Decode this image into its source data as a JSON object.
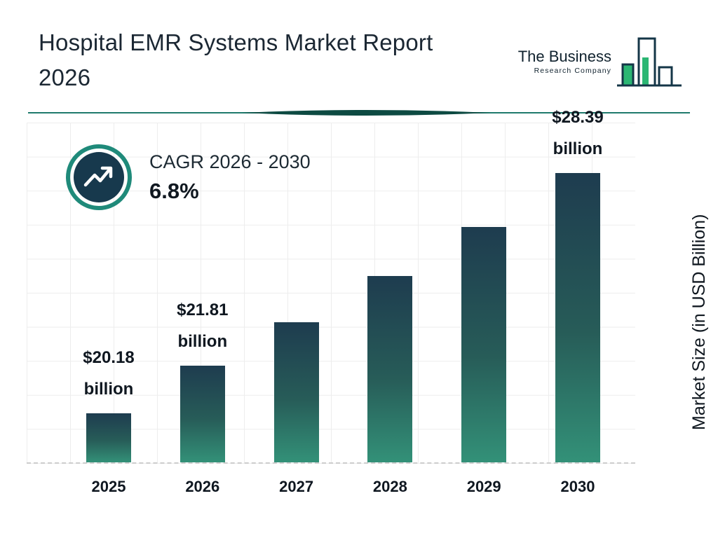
{
  "header": {
    "title_line1": "Hospital EMR Systems Market Report",
    "title_line2": "2026"
  },
  "logo": {
    "line1": "The Business",
    "line2": "Research Company"
  },
  "cagr": {
    "label": "CAGR 2026 - 2030",
    "value": "6.8%"
  },
  "chart_data": {
    "type": "bar",
    "title": "Hospital EMR Systems Market Report 2026",
    "categories": [
      "2025",
      "2026",
      "2027",
      "2028",
      "2029",
      "2030"
    ],
    "values": [
      20.18,
      21.81,
      23.29,
      24.87,
      26.56,
      28.39
    ],
    "value_labels": [
      {
        "amount": "$20.18",
        "unit": "billion"
      },
      {
        "amount": "$21.81",
        "unit": "billion"
      },
      null,
      null,
      null,
      {
        "amount": "$28.39",
        "unit": "billion"
      }
    ],
    "xlabel": "",
    "ylabel": "Market Size (in USD Billion)",
    "ylim": [
      18.5,
      30
    ],
    "grid": true,
    "legend": false
  },
  "colors": {
    "bar_gradient_top": "#1e3c4f",
    "bar_gradient_bottom": "#339178",
    "accent_teal": "#1f8a7a",
    "dark_navy": "#17394d",
    "logo_green": "#2bb673",
    "text_dark": "#101820"
  }
}
